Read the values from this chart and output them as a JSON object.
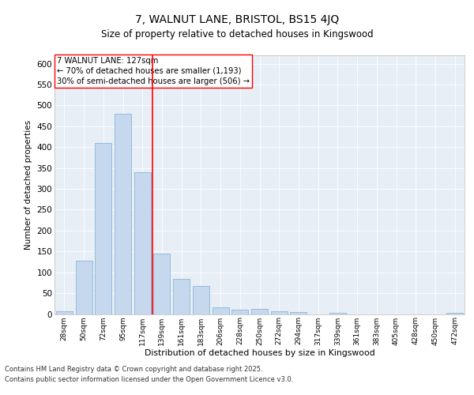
{
  "title": "7, WALNUT LANE, BRISTOL, BS15 4JQ",
  "subtitle": "Size of property relative to detached houses in Kingswood",
  "xlabel": "Distribution of detached houses by size in Kingswood",
  "ylabel": "Number of detached properties",
  "categories": [
    "28sqm",
    "50sqm",
    "72sqm",
    "95sqm",
    "117sqm",
    "139sqm",
    "161sqm",
    "183sqm",
    "206sqm",
    "228sqm",
    "250sqm",
    "272sqm",
    "294sqm",
    "317sqm",
    "339sqm",
    "361sqm",
    "383sqm",
    "405sqm",
    "428sqm",
    "450sqm",
    "472sqm"
  ],
  "values": [
    7,
    127,
    410,
    480,
    340,
    145,
    85,
    67,
    17,
    11,
    13,
    6,
    5,
    0,
    2,
    0,
    0,
    0,
    0,
    0,
    3
  ],
  "bar_color": "#c5d8ee",
  "bar_edge_color": "#7aadd4",
  "vline_x": 4.5,
  "vline_color": "red",
  "annotation_title": "7 WALNUT LANE: 127sqm",
  "annotation_line1": "← 70% of detached houses are smaller (1,193)",
  "annotation_line2": "30% of semi-detached houses are larger (506) →",
  "annotation_box_color": "white",
  "annotation_box_edge": "red",
  "ylim": [
    0,
    620
  ],
  "yticks": [
    0,
    50,
    100,
    150,
    200,
    250,
    300,
    350,
    400,
    450,
    500,
    550,
    600
  ],
  "bg_color": "#e8eef6",
  "footer_line1": "Contains HM Land Registry data © Crown copyright and database right 2025.",
  "footer_line2": "Contains public sector information licensed under the Open Government Licence v3.0."
}
